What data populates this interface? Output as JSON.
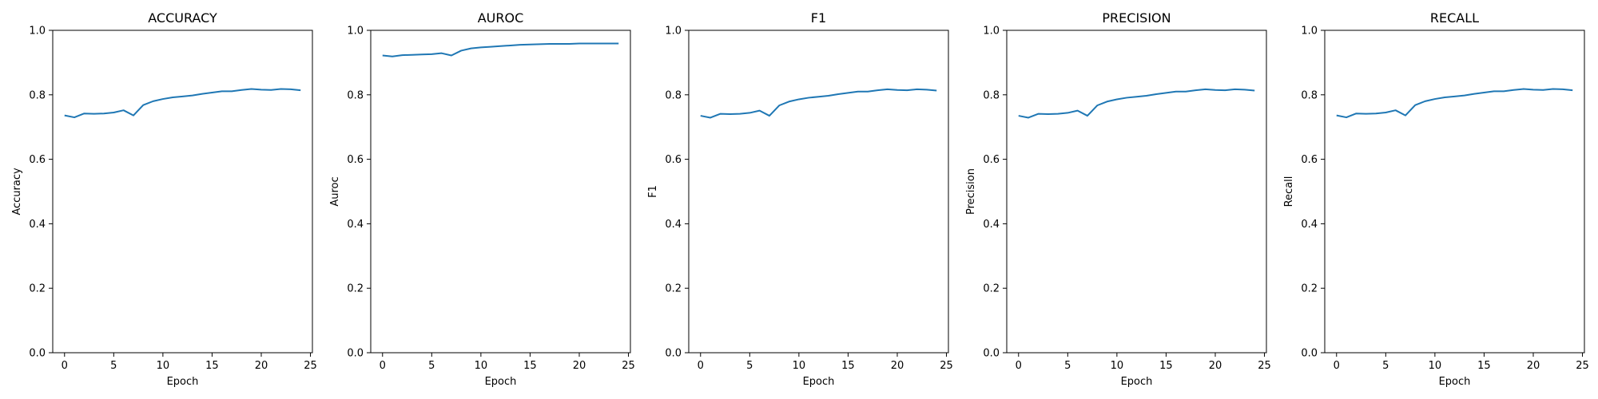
{
  "chart_data": [
    {
      "type": "line",
      "title": "ACCURACY",
      "xlabel": "Epoch",
      "ylabel": "Accuracy",
      "xlim": [
        -1.2,
        25.2
      ],
      "ylim": [
        0.0,
        1.0
      ],
      "xticks": [
        0,
        5,
        10,
        15,
        20,
        25
      ],
      "yticks": [
        0.0,
        0.2,
        0.4,
        0.6,
        0.8,
        1.0
      ],
      "color": "#1f77b4",
      "x": [
        0,
        1,
        2,
        3,
        4,
        5,
        6,
        7,
        8,
        9,
        10,
        11,
        12,
        13,
        14,
        15,
        16,
        17,
        18,
        19,
        20,
        21,
        22,
        23,
        24
      ],
      "series": [
        {
          "values": [
            0.736,
            0.73,
            0.742,
            0.741,
            0.742,
            0.745,
            0.752,
            0.736,
            0.768,
            0.78,
            0.787,
            0.792,
            0.795,
            0.798,
            0.803,
            0.807,
            0.811,
            0.811,
            0.815,
            0.818,
            0.816,
            0.815,
            0.818,
            0.817,
            0.814
          ]
        }
      ]
    },
    {
      "type": "line",
      "title": "AUROC",
      "xlabel": "Epoch",
      "ylabel": "Auroc",
      "xlim": [
        -1.2,
        25.2
      ],
      "ylim": [
        0.0,
        1.0
      ],
      "xticks": [
        0,
        5,
        10,
        15,
        20,
        25
      ],
      "yticks": [
        0.0,
        0.2,
        0.4,
        0.6,
        0.8,
        1.0
      ],
      "color": "#1f77b4",
      "x": [
        0,
        1,
        2,
        3,
        4,
        5,
        6,
        7,
        8,
        9,
        10,
        11,
        12,
        13,
        14,
        15,
        16,
        17,
        18,
        19,
        20,
        21,
        22,
        23,
        24
      ],
      "series": [
        {
          "values": [
            0.922,
            0.919,
            0.923,
            0.924,
            0.925,
            0.926,
            0.929,
            0.922,
            0.937,
            0.944,
            0.947,
            0.949,
            0.951,
            0.953,
            0.955,
            0.956,
            0.957,
            0.958,
            0.958,
            0.958,
            0.959,
            0.959,
            0.959,
            0.959,
            0.959
          ]
        }
      ]
    },
    {
      "type": "line",
      "title": "F1",
      "xlabel": "Epoch",
      "ylabel": "F1",
      "xlim": [
        -1.2,
        25.2
      ],
      "ylim": [
        0.0,
        1.0
      ],
      "xticks": [
        0,
        5,
        10,
        15,
        20,
        25
      ],
      "yticks": [
        0.0,
        0.2,
        0.4,
        0.6,
        0.8,
        1.0
      ],
      "color": "#1f77b4",
      "x": [
        0,
        1,
        2,
        3,
        4,
        5,
        6,
        7,
        8,
        9,
        10,
        11,
        12,
        13,
        14,
        15,
        16,
        17,
        18,
        19,
        20,
        21,
        22,
        23,
        24
      ],
      "series": [
        {
          "values": [
            0.735,
            0.729,
            0.741,
            0.74,
            0.741,
            0.744,
            0.751,
            0.735,
            0.767,
            0.779,
            0.786,
            0.791,
            0.794,
            0.797,
            0.802,
            0.806,
            0.81,
            0.81,
            0.814,
            0.817,
            0.815,
            0.814,
            0.817,
            0.816,
            0.813
          ]
        }
      ]
    },
    {
      "type": "line",
      "title": "PRECISION",
      "xlabel": "Epoch",
      "ylabel": "Precision",
      "xlim": [
        -1.2,
        25.2
      ],
      "ylim": [
        0.0,
        1.0
      ],
      "xticks": [
        0,
        5,
        10,
        15,
        20,
        25
      ],
      "yticks": [
        0.0,
        0.2,
        0.4,
        0.6,
        0.8,
        1.0
      ],
      "color": "#1f77b4",
      "x": [
        0,
        1,
        2,
        3,
        4,
        5,
        6,
        7,
        8,
        9,
        10,
        11,
        12,
        13,
        14,
        15,
        16,
        17,
        18,
        19,
        20,
        21,
        22,
        23,
        24
      ],
      "series": [
        {
          "values": [
            0.735,
            0.729,
            0.741,
            0.74,
            0.741,
            0.744,
            0.751,
            0.735,
            0.767,
            0.779,
            0.786,
            0.791,
            0.794,
            0.797,
            0.802,
            0.806,
            0.81,
            0.81,
            0.814,
            0.817,
            0.815,
            0.814,
            0.817,
            0.816,
            0.813
          ]
        }
      ]
    },
    {
      "type": "line",
      "title": "RECALL",
      "xlabel": "Epoch",
      "ylabel": "Recall",
      "xlim": [
        -1.2,
        25.2
      ],
      "ylim": [
        0.0,
        1.0
      ],
      "xticks": [
        0,
        5,
        10,
        15,
        20,
        25
      ],
      "yticks": [
        0.0,
        0.2,
        0.4,
        0.6,
        0.8,
        1.0
      ],
      "color": "#1f77b4",
      "x": [
        0,
        1,
        2,
        3,
        4,
        5,
        6,
        7,
        8,
        9,
        10,
        11,
        12,
        13,
        14,
        15,
        16,
        17,
        18,
        19,
        20,
        21,
        22,
        23,
        24
      ],
      "series": [
        {
          "values": [
            0.736,
            0.73,
            0.742,
            0.741,
            0.742,
            0.745,
            0.752,
            0.736,
            0.768,
            0.78,
            0.787,
            0.792,
            0.795,
            0.798,
            0.803,
            0.807,
            0.811,
            0.811,
            0.815,
            0.818,
            0.816,
            0.815,
            0.818,
            0.817,
            0.814
          ]
        }
      ]
    }
  ]
}
